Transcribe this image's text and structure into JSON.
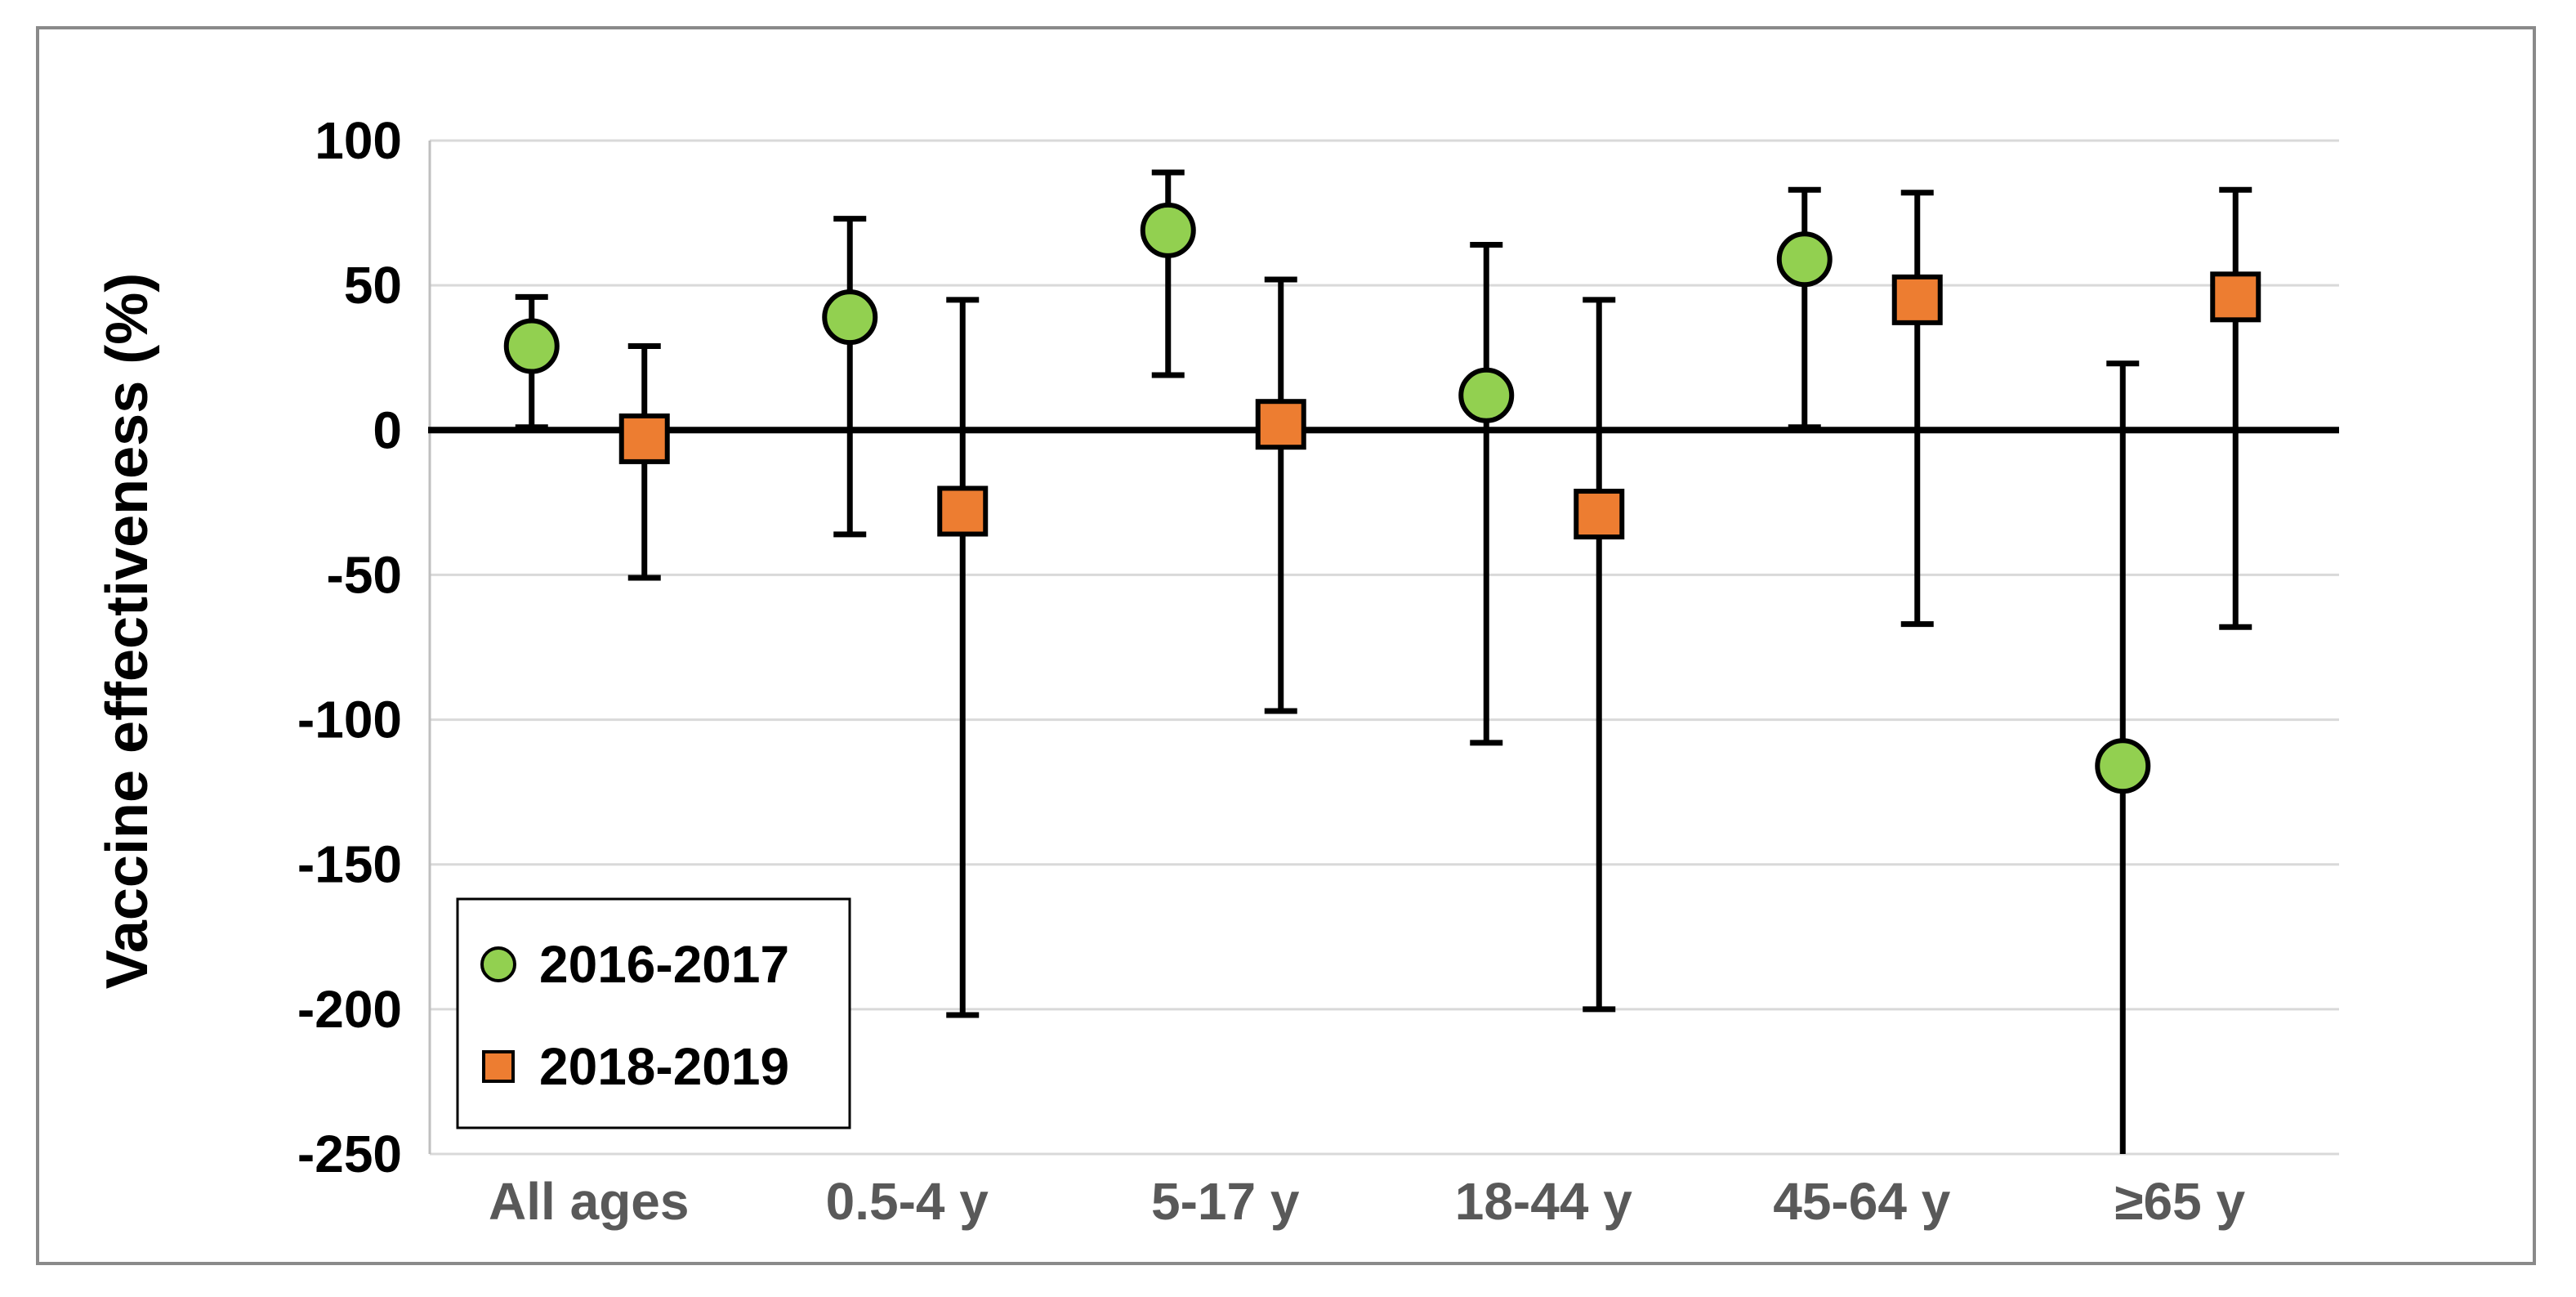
{
  "chart_data": {
    "type": "scatter",
    "ylabel": "Vaccine effectiveness (%)",
    "xlabel": "",
    "ylim": [
      -250,
      100
    ],
    "yticks": [
      100,
      50,
      0,
      -50,
      -100,
      -150,
      -200,
      -250
    ],
    "ytick_labels": [
      "100",
      "50",
      "0",
      "-50",
      "-100",
      "-150",
      "-200",
      "-250"
    ],
    "categories": [
      "All ages",
      "0.5-4 y",
      "5-17 y",
      "18-44 y",
      "45-64 y",
      "≥65 y"
    ],
    "grid": true,
    "legend_position": "bottom-left",
    "series": [
      {
        "name": "2016-2017",
        "marker": "circle",
        "color": "#92d050",
        "values": [
          29,
          39,
          69,
          12,
          59,
          -116
        ],
        "ci_low": [
          1,
          -36,
          19,
          -108,
          1,
          -250
        ],
        "ci_high": [
          46,
          73,
          89,
          64,
          83,
          23
        ]
      },
      {
        "name": "2018-2019",
        "marker": "square",
        "color": "#ed7d31",
        "values": [
          -3,
          -28,
          2,
          -29,
          45,
          46
        ],
        "ci_low": [
          -51,
          -202,
          -97,
          -200,
          -67,
          -68
        ],
        "ci_high": [
          29,
          45,
          52,
          45,
          82,
          83
        ]
      }
    ]
  }
}
